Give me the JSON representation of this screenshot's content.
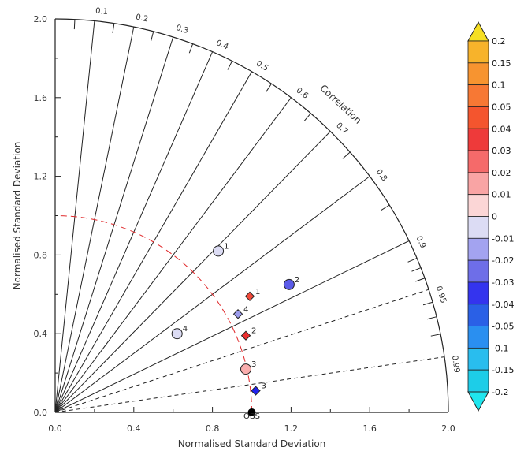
{
  "chart_data": {
    "type": "scatter",
    "title": "",
    "xlabel": "Normalised Standard Deviation",
    "ylabel": "Normalised Standard Deviation",
    "correlation_label": "Correlation",
    "xlim": [
      0,
      2.0
    ],
    "ylim": [
      0,
      2.0
    ],
    "x_ticks": [
      "0.0",
      "0.4",
      "0.8",
      "1.2",
      "1.6",
      "2.0"
    ],
    "y_ticks": [
      "0.0",
      "0.4",
      "0.8",
      "1.2",
      "1.6",
      "2.0"
    ],
    "correlation_ticks": [
      {
        "r": 0.1,
        "label": "0.1"
      },
      {
        "r": 0.2,
        "label": "0.2"
      },
      {
        "r": 0.3,
        "label": "0.3"
      },
      {
        "r": 0.4,
        "label": "0.4"
      },
      {
        "r": 0.5,
        "label": "0.5"
      },
      {
        "r": 0.6,
        "label": "0.6"
      },
      {
        "r": 0.7,
        "label": "0.7"
      },
      {
        "r": 0.8,
        "label": "0.8"
      },
      {
        "r": 0.9,
        "label": "0.9"
      },
      {
        "r": 0.95,
        "label": "0.95"
      },
      {
        "r": 0.99,
        "label": "0.99"
      }
    ],
    "reference_label": "OBS",
    "reference_std": 1.0,
    "points": [
      {
        "label": "1",
        "marker": "circle",
        "x": 0.83,
        "y": 0.82,
        "color": "#dcdcf4"
      },
      {
        "label": "2",
        "marker": "circle",
        "x": 1.19,
        "y": 0.65,
        "color": "#5b5be8"
      },
      {
        "label": "3",
        "marker": "circle",
        "x": 0.97,
        "y": 0.22,
        "color": "#f9adad"
      },
      {
        "label": "4",
        "marker": "circle",
        "x": 0.62,
        "y": 0.4,
        "color": "#dcdcf4"
      },
      {
        "label": "1",
        "marker": "diamond",
        "x": 0.99,
        "y": 0.59,
        "color": "#f24a3b"
      },
      {
        "label": "2",
        "marker": "diamond",
        "x": 0.97,
        "y": 0.39,
        "color": "#ec2f2f"
      },
      {
        "label": "3",
        "marker": "diamond",
        "x": 1.02,
        "y": 0.11,
        "color": "#2222ee"
      },
      {
        "label": "4",
        "marker": "diamond",
        "x": 0.93,
        "y": 0.5,
        "color": "#9c9cec"
      }
    ],
    "colorbar": {
      "labels": [
        "0.2",
        "0.15",
        "0.1",
        "0.05",
        "0.04",
        "0.03",
        "0.02",
        "0.01",
        "0",
        "-0.01",
        "-0.02",
        "-0.03",
        "-0.04",
        "-0.05",
        "-0.1",
        "-0.15",
        "-0.2"
      ],
      "colors": [
        "#f6df24",
        "#f7b32b",
        "#f79430",
        "#f77834",
        "#f4552e",
        "#ee3a3a",
        "#f56a6a",
        "#f9a4a4",
        "#fbd6d6",
        "#dcdcf4",
        "#a3a3f0",
        "#6e6ee8",
        "#3434ee",
        "#2a60e6",
        "#2a8ff0",
        "#29bdee",
        "#1dcde8",
        "#1fe6ee"
      ]
    }
  }
}
